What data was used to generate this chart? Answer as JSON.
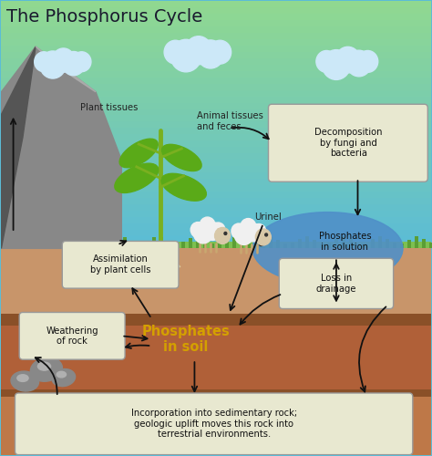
{
  "title": "The Phosphorus Cycle",
  "title_fontsize": 14,
  "title_color": "#1a1a2e",
  "sky_top": "#5bbcd6",
  "sky_bottom": "#b8e8b0",
  "ground1_color": "#c8956a",
  "ground2_color": "#a86840",
  "ground3_color": "#b87850",
  "ground_line1_color": "#8a5530",
  "ground_line2_color": "#8a5530",
  "grass_color": "#7dc050",
  "grass_dark": "#5a9e35",
  "water_color": "#5090c8",
  "rock_color": "#888888",
  "rock_dark": "#555555",
  "rock_light": "#aaaaaa",
  "cloud_color": "#ddf0ff",
  "box_face": "#e8e8d0",
  "box_edge": "#999999",
  "arrow_color": "#111111",
  "phosphates_soil_color": "#d4a000",
  "plant_stem": "#7ab020",
  "plant_leaf": "#5aaa18",
  "root_color": "#e0d0a0",
  "sheep_body": "#f5f5f5",
  "sheep_face": "#e8d8c0",
  "labels": {
    "plant_tissues": "Plant tissues",
    "animal_tissues": "Animal tissues\nand feces",
    "urinel": "Urinel",
    "decomposition": "Decomposition\nby fungi and\nbacteria",
    "phosphates_solution": "Phosphates\nin solution",
    "loss_drainage": "Loss in\ndrainage",
    "assimilation": "Assimilation\nby plant cells",
    "phosphates_soil": "Phosphates\nin soil",
    "weathering": "Weathering\nof rock",
    "incorporation": "Incorporation into sedimentary rock;\ngeologic uplift moves this rock into\nterrestrial environments."
  },
  "figsize": [
    4.74,
    5.0
  ],
  "dpi": 100
}
